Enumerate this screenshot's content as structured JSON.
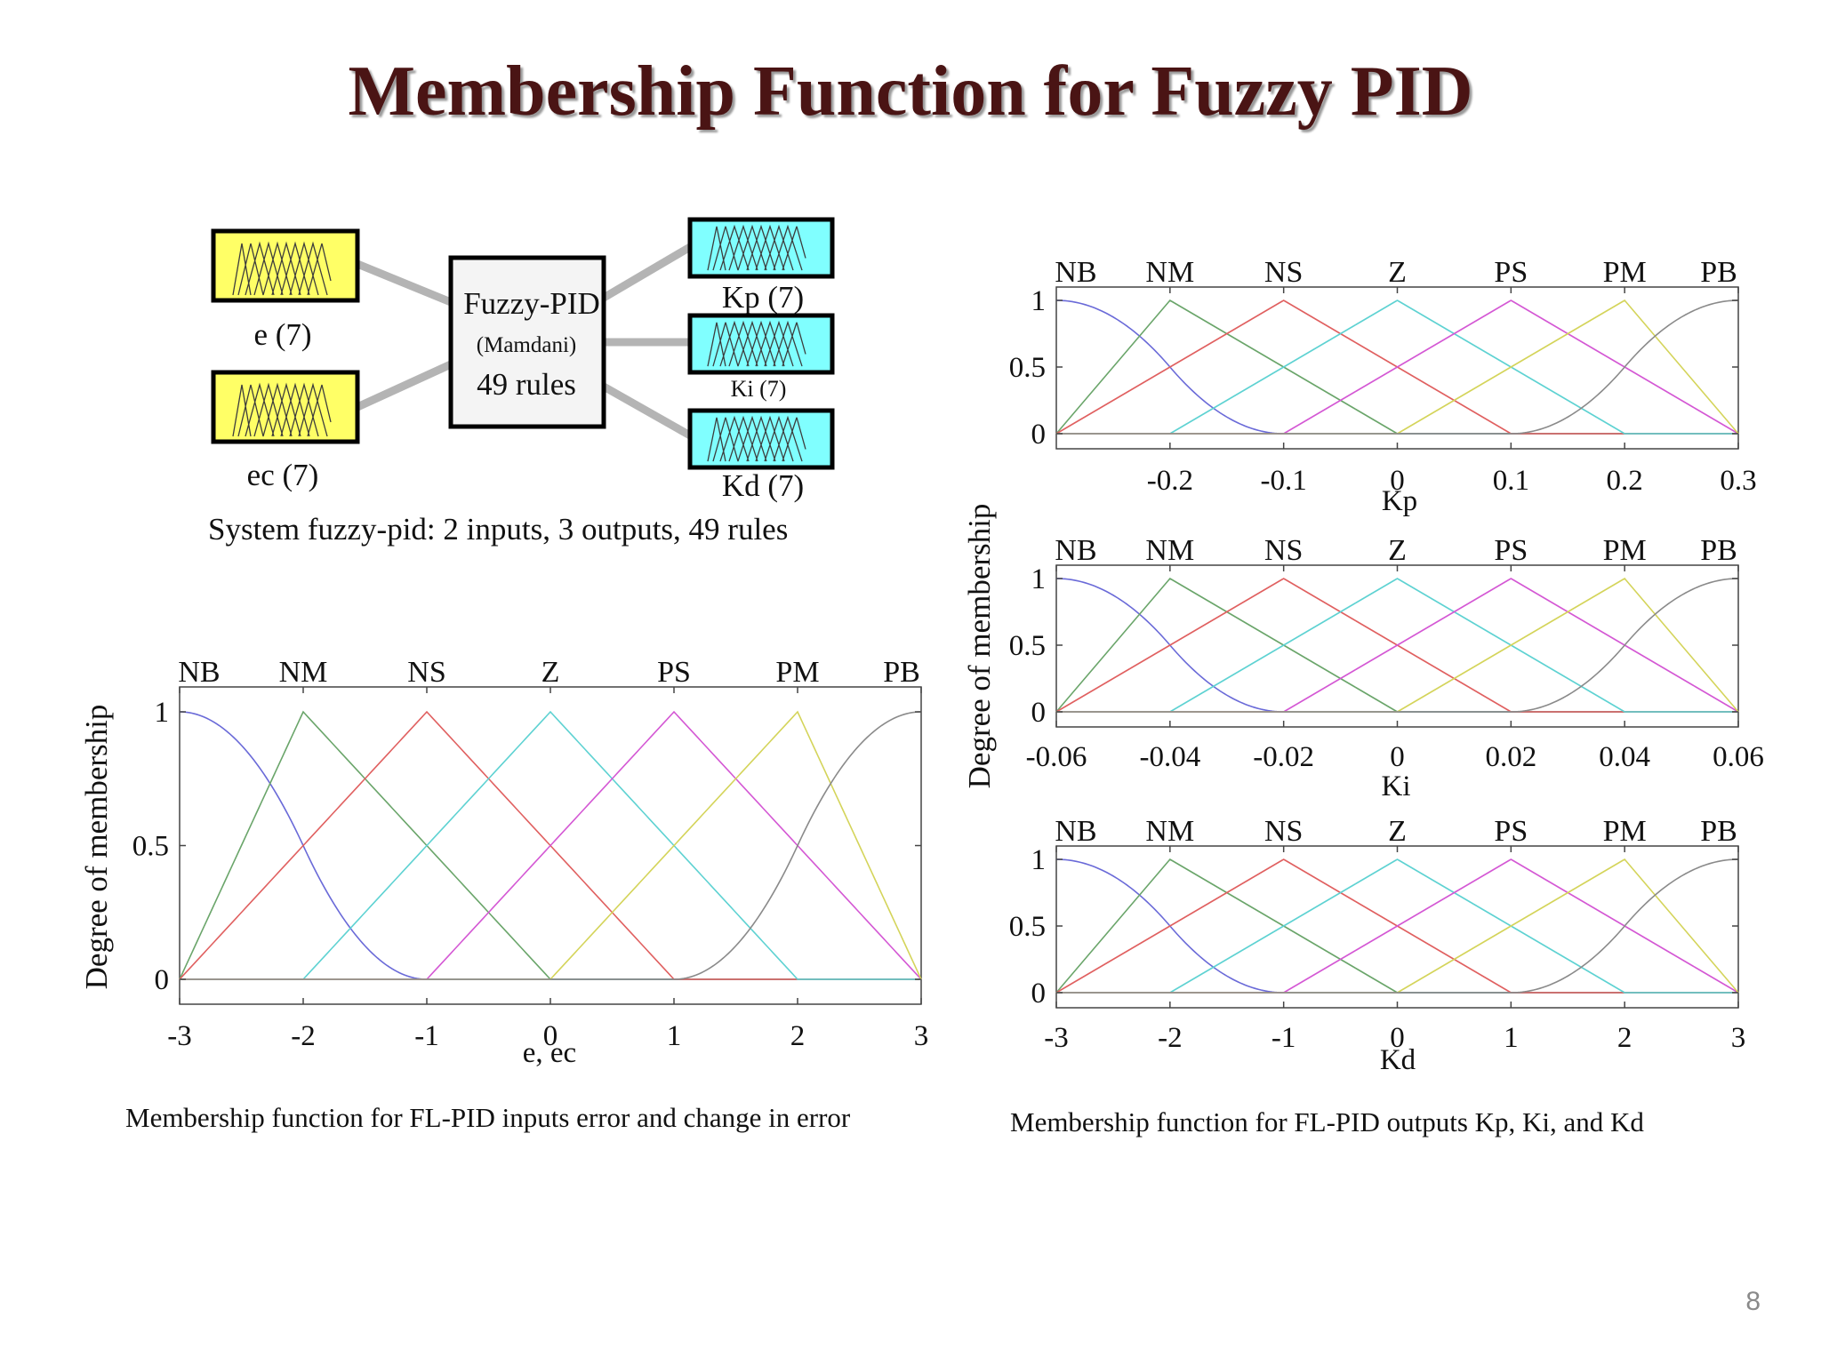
{
  "slide": {
    "title": "Membership Function for Fuzzy PID",
    "page_number": "8"
  },
  "fis": {
    "inputs": [
      {
        "label": "e (7)",
        "color": "#ffff66"
      },
      {
        "label": "ec (7)",
        "color": "#ffff66"
      }
    ],
    "center": {
      "line1": "Fuzzy-PID",
      "line2": "(Mamdani)",
      "line3": "49 rules"
    },
    "outputs": [
      {
        "label": "Kp (7)",
        "color": "#80ffff"
      },
      {
        "label": "Ki (7)",
        "color": "#80ffff"
      },
      {
        "label": "Kd (7)",
        "color": "#80ffff"
      }
    ],
    "summary": "System fuzzy-pid: 2 inputs, 3 outputs, 49 rules"
  },
  "captions": {
    "inputs": "Membership function for FL-PID inputs  error and change in error",
    "outputs": "Membership function for FL-PID outputs Kp, Ki, and Kd"
  },
  "chart_data": [
    {
      "type": "line",
      "id": "inputs",
      "xlabel": "e, ec",
      "ylabel": "Degree of membership",
      "xlim": [
        -3,
        3
      ],
      "ylim": [
        0,
        1
      ],
      "xticks": [
        "-3",
        "-2",
        "-1",
        "0",
        "1",
        "2",
        "3"
      ],
      "yticks": [
        "0",
        "0.5",
        "1"
      ],
      "sets": [
        "NB",
        "NM",
        "NS",
        "Z",
        "PS",
        "PM",
        "PB"
      ],
      "series": [
        {
          "name": "NB",
          "shape": "z-curve",
          "params": [
            -3,
            -1
          ],
          "color": "#6a6ad8"
        },
        {
          "name": "NM",
          "shape": "triangle",
          "params": [
            -3,
            -2,
            0
          ],
          "color": "#6aa56a"
        },
        {
          "name": "NS",
          "shape": "triangle",
          "params": [
            -3,
            -1,
            1
          ],
          "color": "#e06060"
        },
        {
          "name": "Z",
          "shape": "triangle",
          "params": [
            -2,
            0,
            2
          ],
          "color": "#5ed2d2"
        },
        {
          "name": "PS",
          "shape": "triangle",
          "params": [
            -1,
            1,
            3
          ],
          "color": "#d458d4"
        },
        {
          "name": "PM",
          "shape": "triangle",
          "params": [
            0,
            2,
            3
          ],
          "color": "#d4d45a"
        },
        {
          "name": "PB",
          "shape": "s-curve",
          "params": [
            1,
            3
          ],
          "color": "#8a8a8a"
        }
      ]
    },
    {
      "type": "line",
      "id": "Kp",
      "xlabel": "Kp",
      "ylabel": "Degree of membership",
      "xlim": [
        -0.3,
        0.3
      ],
      "ylim": [
        0,
        1
      ],
      "xticks": [
        "-0.2",
        "-0.1",
        "0",
        "0.1",
        "0.2",
        "0.3"
      ],
      "xtick_values": [
        -0.2,
        -0.1,
        0,
        0.1,
        0.2,
        0.3
      ],
      "yticks": [
        "0",
        "0.5",
        "1"
      ],
      "sets": [
        "NB",
        "NM",
        "NS",
        "Z",
        "PS",
        "PM",
        "PB"
      ],
      "series": [
        {
          "name": "NB",
          "shape": "z-curve",
          "params": [
            -0.3,
            -0.1
          ],
          "color": "#6a6ad8"
        },
        {
          "name": "NM",
          "shape": "triangle",
          "params": [
            -0.3,
            -0.2,
            0
          ],
          "color": "#6aa56a"
        },
        {
          "name": "NS",
          "shape": "triangle",
          "params": [
            -0.3,
            -0.1,
            0.1
          ],
          "color": "#e06060"
        },
        {
          "name": "Z",
          "shape": "triangle",
          "params": [
            -0.2,
            0,
            0.2
          ],
          "color": "#5ed2d2"
        },
        {
          "name": "PS",
          "shape": "triangle",
          "params": [
            -0.1,
            0.1,
            0.3
          ],
          "color": "#d458d4"
        },
        {
          "name": "PM",
          "shape": "triangle",
          "params": [
            0,
            0.2,
            0.3
          ],
          "color": "#d4d45a"
        },
        {
          "name": "PB",
          "shape": "s-curve",
          "params": [
            0.1,
            0.3
          ],
          "color": "#8a8a8a"
        }
      ]
    },
    {
      "type": "line",
      "id": "Ki",
      "xlabel": "Ki",
      "ylabel": "Degree of membership",
      "xlim": [
        -0.06,
        0.06
      ],
      "ylim": [
        0,
        1
      ],
      "xticks": [
        "-0.06",
        "-0.04",
        "-0.02",
        "0",
        "0.02",
        "0.04",
        "0.06"
      ],
      "xtick_values": [
        -0.06,
        -0.04,
        -0.02,
        0,
        0.02,
        0.04,
        0.06
      ],
      "yticks": [
        "0",
        "0.5",
        "1"
      ],
      "sets": [
        "NB",
        "NM",
        "NS",
        "Z",
        "PS",
        "PM",
        "PB"
      ],
      "series": [
        {
          "name": "NB",
          "shape": "z-curve",
          "params": [
            -0.06,
            -0.02
          ],
          "color": "#6a6ad8"
        },
        {
          "name": "NM",
          "shape": "triangle",
          "params": [
            -0.06,
            -0.04,
            0
          ],
          "color": "#6aa56a"
        },
        {
          "name": "NS",
          "shape": "triangle",
          "params": [
            -0.06,
            -0.02,
            0.02
          ],
          "color": "#e06060"
        },
        {
          "name": "Z",
          "shape": "triangle",
          "params": [
            -0.04,
            0,
            0.04
          ],
          "color": "#5ed2d2"
        },
        {
          "name": "PS",
          "shape": "triangle",
          "params": [
            -0.02,
            0.02,
            0.06
          ],
          "color": "#d458d4"
        },
        {
          "name": "PM",
          "shape": "triangle",
          "params": [
            0,
            0.04,
            0.06
          ],
          "color": "#d4d45a"
        },
        {
          "name": "PB",
          "shape": "s-curve",
          "params": [
            0.02,
            0.06
          ],
          "color": "#8a8a8a"
        }
      ]
    },
    {
      "type": "line",
      "id": "Kd",
      "xlabel": "Kd",
      "ylabel": "Degree of membership",
      "xlim": [
        -3,
        3
      ],
      "ylim": [
        0,
        1
      ],
      "xticks": [
        "-3",
        "-2",
        "-1",
        "0",
        "1",
        "2",
        "3"
      ],
      "xtick_values": [
        -3,
        -2,
        -1,
        0,
        1,
        2,
        3
      ],
      "yticks": [
        "0",
        "0.5",
        "1"
      ],
      "sets": [
        "NB",
        "NM",
        "NS",
        "Z",
        "PS",
        "PM",
        "PB"
      ],
      "series": [
        {
          "name": "NB",
          "shape": "z-curve",
          "params": [
            -3,
            -1
          ],
          "color": "#6a6ad8"
        },
        {
          "name": "NM",
          "shape": "triangle",
          "params": [
            -3,
            -2,
            0
          ],
          "color": "#6aa56a"
        },
        {
          "name": "NS",
          "shape": "triangle",
          "params": [
            -3,
            -1,
            1
          ],
          "color": "#e06060"
        },
        {
          "name": "Z",
          "shape": "triangle",
          "params": [
            -2,
            0,
            2
          ],
          "color": "#5ed2d2"
        },
        {
          "name": "PS",
          "shape": "triangle",
          "params": [
            -1,
            1,
            3
          ],
          "color": "#d458d4"
        },
        {
          "name": "PM",
          "shape": "triangle",
          "params": [
            0,
            2,
            3
          ],
          "color": "#d4d45a"
        },
        {
          "name": "PB",
          "shape": "s-curve",
          "params": [
            1,
            3
          ],
          "color": "#8a8a8a"
        }
      ]
    }
  ]
}
